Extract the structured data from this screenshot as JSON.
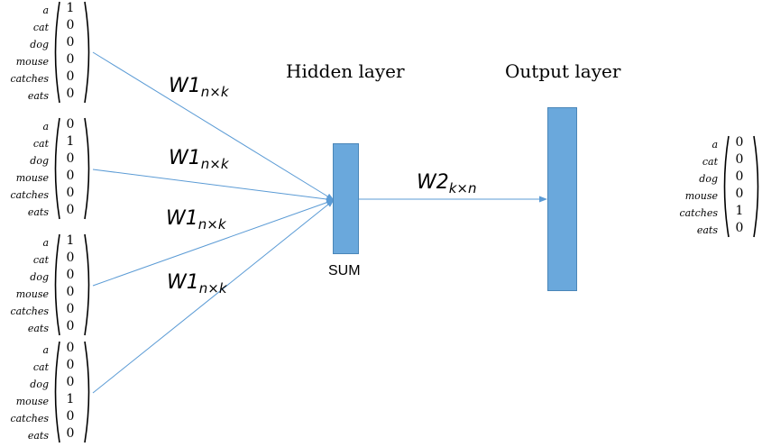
{
  "input_vectors": [
    {
      "words": [
        "a",
        "cat",
        "dog",
        "mouse",
        "catches",
        "eats"
      ],
      "values": [
        "1",
        "0",
        "0",
        "0",
        "0",
        "0"
      ]
    },
    {
      "words": [
        "a",
        "cat",
        "dog",
        "mouse",
        "catches",
        "eats"
      ],
      "values": [
        "0",
        "1",
        "0",
        "0",
        "0",
        "0"
      ]
    },
    {
      "words": [
        "a",
        "cat",
        "dog",
        "mouse",
        "catches",
        "eats"
      ],
      "values": [
        "1",
        "0",
        "0",
        "0",
        "0",
        "0"
      ]
    },
    {
      "words": [
        "a",
        "cat",
        "dog",
        "mouse",
        "catches",
        "eats"
      ],
      "values": [
        "0",
        "0",
        "0",
        "1",
        "0",
        "0"
      ]
    }
  ],
  "output_vector": {
    "words": [
      "a",
      "cat",
      "dog",
      "mouse",
      "catches",
      "eats"
    ],
    "values": [
      "0",
      "0",
      "0",
      "0",
      "1",
      "0"
    ]
  },
  "weights": [
    {
      "base": "W1",
      "sub": "n×k"
    },
    {
      "base": "W1",
      "sub": "n×k"
    },
    {
      "base": "W1",
      "sub": "n×k"
    },
    {
      "base": "W1",
      "sub": "n×k"
    }
  ],
  "w2": {
    "base": "W2",
    "sub": "k×n"
  },
  "hidden_label": "Hidden layer",
  "output_label": "Output layer",
  "sum_label": "SUM",
  "colors": {
    "box": "#6aa8dc",
    "arrow": "#5b9bd5"
  }
}
